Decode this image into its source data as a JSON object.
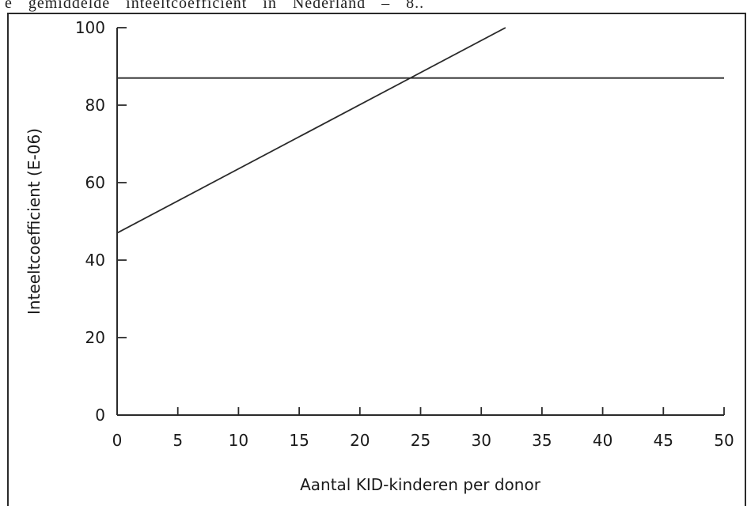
{
  "page": {
    "fragment_text": "e gemiddelde inteeltcoëfficiënt in Nederland – 8.."
  },
  "chart_data": {
    "type": "line",
    "title": "",
    "xlabel": "Aantal KID-kinderen per donor",
    "ylabel": "Inteeltcoefficient (E-06)",
    "xlim": [
      0,
      50
    ],
    "ylim": [
      0,
      100
    ],
    "x_ticks": [
      0,
      5,
      10,
      15,
      20,
      25,
      30,
      35,
      40,
      45,
      50
    ],
    "y_ticks": [
      0,
      20,
      40,
      60,
      80,
      100
    ],
    "grid": false,
    "legend": "none",
    "series": [
      {
        "x": [
          0,
          32
        ],
        "y": [
          47,
          100
        ],
        "color": "#2a2a2a"
      },
      {
        "x": [
          0,
          50
        ],
        "y": [
          87,
          87
        ],
        "color": "#2a2a2a"
      }
    ]
  }
}
